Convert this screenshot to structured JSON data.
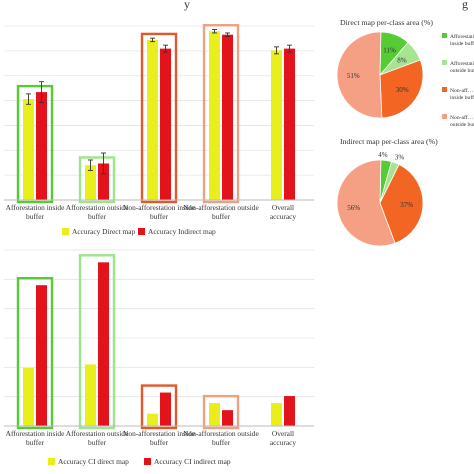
{
  "page_title_fragment": "y",
  "page_title_fragment_right": "g",
  "colors": {
    "direct": "#e8ef1c",
    "indirect": "#e2131b",
    "box_green": "#55cc33",
    "box_lightgreen": "#9be58a",
    "box_orange": "#e2582a",
    "box_salmon": "#f0a080",
    "pie_aff_in": "#55cc33",
    "pie_aff_out": "#a6e492",
    "pie_nonaff_in": "#f26522",
    "pie_nonaff_out": "#f5a085"
  },
  "chart_data": [
    {
      "type": "bar",
      "categories": [
        "Afforestation inside buffer",
        "Afforestation outside buffer",
        "Non-afforestation inside buffer",
        "Non-afforestation outside buffer",
        "Overall accuracy"
      ],
      "series": [
        {
          "name": "Accuracy Direct map",
          "values": [
            0.58,
            0.2,
            0.92,
            0.97,
            0.86
          ]
        },
        {
          "name": "Accuracy Indirect map",
          "values": [
            0.62,
            0.21,
            0.87,
            0.95,
            0.87
          ]
        }
      ],
      "error": [
        [
          0.03,
          0.03,
          0.01,
          0.01,
          0.02
        ],
        [
          0.06,
          0.06,
          0.02,
          0.01,
          0.02
        ]
      ],
      "ylim": [
        0,
        1
      ],
      "legend_position": "bottom",
      "grid": true
    },
    {
      "type": "pie",
      "title": "Direct map per-class area (%)",
      "slices": [
        {
          "label": "Afforestation inside buffer",
          "value": 11,
          "value_label": "11%"
        },
        {
          "label": "Afforestation outside buffer",
          "value": 8,
          "value_label": "8%"
        },
        {
          "label": "Non-afforestation inside buffer",
          "value": 30,
          "value_label": "30%"
        },
        {
          "label": "Non-afforestation outside buffer",
          "value": 51,
          "value_label": "51%"
        }
      ],
      "legend_items": [
        "Afforestation inside buffer",
        "Afforestation outside buffer",
        "Non-aff… inside buffer",
        "Non-aff… outside buffer"
      ]
    },
    {
      "type": "pie",
      "title": "Indirect map per-class area (%)",
      "slices": [
        {
          "label": "Afforestation inside buffer",
          "value": 4,
          "value_label": "4%"
        },
        {
          "label": "Afforestation outside buffer",
          "value": 3,
          "value_label": "3%"
        },
        {
          "label": "Non-afforestation inside buffer",
          "value": 37,
          "value_label": "37%"
        },
        {
          "label": "Non-afforestation outside buffer",
          "value": 56,
          "value_label": "56%"
        }
      ]
    },
    {
      "type": "bar",
      "categories": [
        "Afforestation inside buffer",
        "Afforestation outside buffer",
        "Non-afforestation inside buffer",
        "Non-afforestation outside buffer",
        "Overall accuracy"
      ],
      "series": [
        {
          "name": "Accuracy CI direct map",
          "values": [
            0.33,
            0.35,
            0.07,
            0.13,
            0.13
          ]
        },
        {
          "name": "Accuracy CI indirect map",
          "values": [
            0.8,
            0.93,
            0.19,
            0.09,
            0.17
          ]
        }
      ],
      "ylim": [
        0,
        1
      ],
      "legend_position": "bottom",
      "grid": true
    }
  ]
}
